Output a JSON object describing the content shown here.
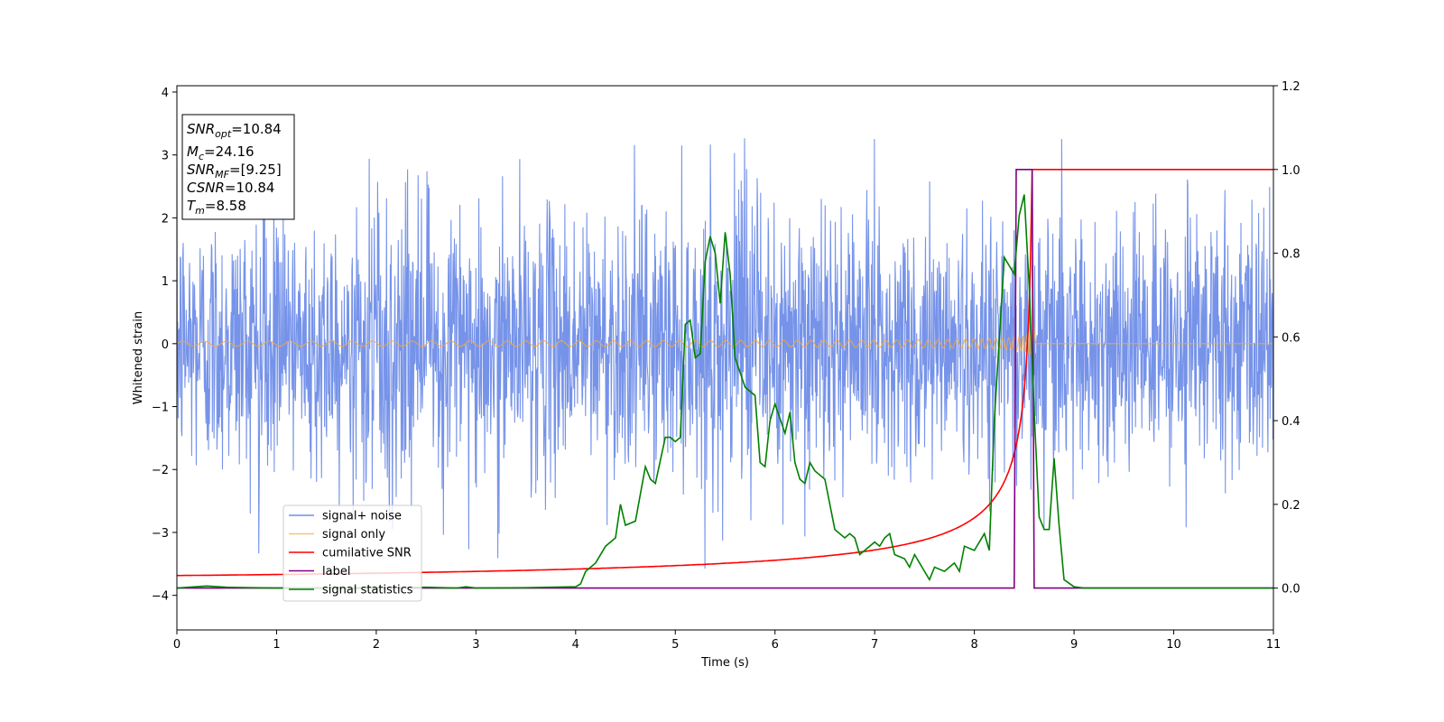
{
  "chart_data": {
    "type": "line",
    "xlabel": "Time (s)",
    "ylabel": "Whitened strain",
    "xlim": [
      0,
      11
    ],
    "ylim_left": [
      -4.55,
      4.1
    ],
    "ylim_right": [
      -0.1,
      1.2
    ],
    "x_ticks": [
      0,
      1,
      2,
      3,
      4,
      5,
      6,
      7,
      8,
      9,
      10,
      11
    ],
    "y_ticks_left": [
      -4,
      -3,
      -2,
      -1,
      0,
      1,
      2,
      3,
      4
    ],
    "y_ticks_right": [
      0.0,
      0.2,
      0.4,
      0.6,
      0.8,
      1.0,
      1.2
    ],
    "legend_position": "lower-left",
    "grid": false,
    "info_box": {
      "snr_opt": {
        "base": "SNR",
        "sub": "opt",
        "value": "=10.84"
      },
      "mc": {
        "base": "M",
        "sub": "c",
        "value": "=24.16"
      },
      "snr_mf": {
        "base": "SNR",
        "sub": "MF",
        "value": "=[9.25]"
      },
      "csnr": {
        "base": "CSNR",
        "value": "=10.84"
      },
      "tm": {
        "base": "T",
        "sub": "m",
        "value": "=8.58"
      }
    },
    "series": [
      {
        "name": "signal+ noise",
        "axis": "left",
        "color": "#4169e1",
        "description_kind": "noise",
        "amplitude_sd": 1.0,
        "peak_range": [
          -3.6,
          3.6
        ]
      },
      {
        "name": "signal only",
        "axis": "left",
        "color": "#f4a83c",
        "description_kind": "chirp",
        "t_merger": 8.58
      },
      {
        "name": "cumilative SNR",
        "axis": "right",
        "color": "#ff0000",
        "description_kind": "cumulative",
        "start_value": 0.03,
        "end_value": 1.0,
        "t_merger": 8.58
      },
      {
        "name": "label",
        "axis": "right",
        "color": "#800080",
        "x": [
          0,
          8.4,
          8.42,
          8.58,
          8.6,
          11
        ],
        "y": [
          0,
          0,
          1,
          1,
          0,
          0
        ]
      },
      {
        "name": "signal statistics",
        "axis": "right",
        "color": "#008000",
        "x": [
          0,
          0.3,
          0.5,
          1.0,
          2.0,
          2.5,
          2.8,
          2.9,
          3.0,
          3.5,
          4.0,
          4.05,
          4.1,
          4.2,
          4.3,
          4.4,
          4.45,
          4.5,
          4.6,
          4.7,
          4.75,
          4.8,
          4.9,
          4.95,
          5.0,
          5.05,
          5.1,
          5.15,
          5.2,
          5.25,
          5.3,
          5.35,
          5.4,
          5.45,
          5.5,
          5.55,
          5.6,
          5.7,
          5.8,
          5.85,
          5.9,
          5.95,
          6.0,
          6.1,
          6.15,
          6.2,
          6.25,
          6.3,
          6.35,
          6.4,
          6.5,
          6.55,
          6.6,
          6.7,
          6.75,
          6.8,
          6.85,
          6.9,
          7.0,
          7.05,
          7.1,
          7.15,
          7.2,
          7.3,
          7.35,
          7.4,
          7.5,
          7.55,
          7.6,
          7.7,
          7.75,
          7.8,
          7.85,
          7.9,
          8.0,
          8.05,
          8.1,
          8.15,
          8.2,
          8.3,
          8.35,
          8.4,
          8.45,
          8.5,
          8.55,
          8.6,
          8.65,
          8.7,
          8.75,
          8.8,
          8.85,
          8.9,
          9.0,
          9.1,
          11.0
        ],
        "y": [
          0.0,
          0.005,
          0.002,
          0.0,
          0.0,
          0.002,
          0.0,
          0.003,
          0.0,
          0.001,
          0.003,
          0.01,
          0.04,
          0.06,
          0.1,
          0.12,
          0.2,
          0.15,
          0.16,
          0.29,
          0.26,
          0.25,
          0.36,
          0.36,
          0.35,
          0.36,
          0.63,
          0.64,
          0.55,
          0.56,
          0.78,
          0.84,
          0.8,
          0.68,
          0.85,
          0.75,
          0.55,
          0.48,
          0.46,
          0.3,
          0.29,
          0.4,
          0.44,
          0.37,
          0.42,
          0.3,
          0.26,
          0.25,
          0.3,
          0.28,
          0.26,
          0.2,
          0.14,
          0.12,
          0.13,
          0.12,
          0.08,
          0.09,
          0.11,
          0.1,
          0.12,
          0.13,
          0.08,
          0.07,
          0.05,
          0.08,
          0.04,
          0.02,
          0.05,
          0.04,
          0.05,
          0.06,
          0.04,
          0.1,
          0.09,
          0.11,
          0.13,
          0.09,
          0.4,
          0.79,
          0.77,
          0.75,
          0.89,
          0.94,
          0.72,
          0.42,
          0.17,
          0.14,
          0.14,
          0.31,
          0.15,
          0.02,
          0.003,
          0.0,
          0.0
        ]
      }
    ]
  }
}
